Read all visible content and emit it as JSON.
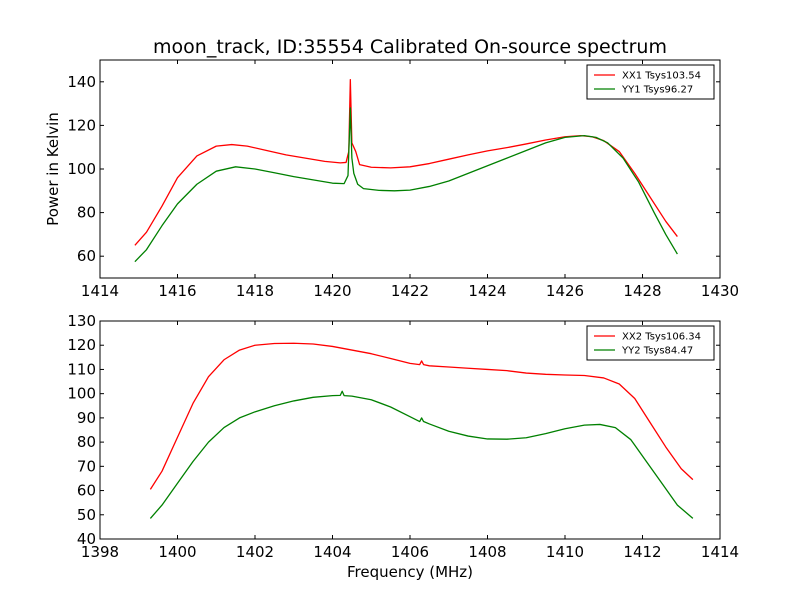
{
  "figure": {
    "title": "moon_track, ID:35554 Calibrated On-source spectrum"
  },
  "chart_data": [
    {
      "type": "line",
      "title": "moon_track, ID:35554 Calibrated On-source spectrum",
      "xlabel": "",
      "ylabel": "Power in Kelvin",
      "xlim": [
        1414,
        1430
      ],
      "ylim": [
        50,
        150
      ],
      "xticks": [
        "1414",
        "1416",
        "1418",
        "1420",
        "1422",
        "1424",
        "1426",
        "1428",
        "1430"
      ],
      "yticks": [
        "60",
        "80",
        "100",
        "120",
        "140"
      ],
      "xtick_values": [
        1414,
        1416,
        1418,
        1420,
        1422,
        1424,
        1426,
        1428,
        1430
      ],
      "ytick_values": [
        60,
        80,
        100,
        120,
        140
      ],
      "grid": false,
      "legend_position": "top-right",
      "series": [
        {
          "name": "XX1 Tsys103.54",
          "color": "#ff0000",
          "x": [
            1414.9,
            1415.2,
            1415.6,
            1416.0,
            1416.5,
            1417.0,
            1417.4,
            1417.8,
            1418.3,
            1418.8,
            1419.3,
            1419.8,
            1420.2,
            1420.35,
            1420.42,
            1420.46,
            1420.5,
            1420.55,
            1420.6,
            1420.7,
            1421.0,
            1421.5,
            1422.0,
            1422.5,
            1423.0,
            1423.5,
            1424.0,
            1424.5,
            1425.0,
            1425.5,
            1426.0,
            1426.4,
            1426.7,
            1427.0,
            1427.4,
            1427.8,
            1428.2,
            1428.6,
            1428.9
          ],
          "y": [
            65,
            71,
            83,
            96,
            106,
            110.5,
            111.2,
            110.5,
            108.5,
            106.5,
            105,
            103.5,
            102.8,
            103,
            108,
            141,
            112,
            110,
            108,
            102,
            100.8,
            100.5,
            101,
            102.5,
            104.5,
            106.5,
            108.3,
            109.8,
            111.5,
            113.3,
            114.8,
            115.3,
            114.8,
            113,
            108,
            98,
            87,
            76,
            69
          ]
        },
        {
          "name": "YY1 Tsys96.27",
          "color": "#008000",
          "x": [
            1414.9,
            1415.2,
            1415.6,
            1416.0,
            1416.5,
            1417.0,
            1417.5,
            1418.0,
            1418.5,
            1419.0,
            1419.5,
            1420.0,
            1420.3,
            1420.4,
            1420.46,
            1420.5,
            1420.55,
            1420.65,
            1420.8,
            1421.2,
            1421.6,
            1422.0,
            1422.5,
            1423.0,
            1423.5,
            1424.0,
            1424.5,
            1425.0,
            1425.5,
            1426.0,
            1426.5,
            1426.8,
            1427.1,
            1427.5,
            1427.9,
            1428.3,
            1428.6,
            1428.9
          ],
          "y": [
            57.5,
            63,
            74,
            84,
            93,
            99,
            101,
            100,
            98.3,
            96.5,
            95,
            93.5,
            93.3,
            97,
            128,
            105,
            98,
            93,
            91,
            90.2,
            90,
            90.3,
            92,
            94.5,
            98,
            101.5,
            105,
            108.5,
            112,
            114.5,
            115.3,
            114.5,
            112,
            105,
            94,
            80,
            70,
            61
          ]
        }
      ]
    },
    {
      "type": "line",
      "title": "",
      "xlabel": "Frequency (MHz)",
      "ylabel": "",
      "xlim": [
        1398,
        1414
      ],
      "ylim": [
        40,
        130
      ],
      "xticks": [
        "1398",
        "1400",
        "1402",
        "1404",
        "1406",
        "1408",
        "1410",
        "1412",
        "1414"
      ],
      "yticks": [
        "40",
        "50",
        "60",
        "70",
        "80",
        "90",
        "100",
        "110",
        "120",
        "130"
      ],
      "xtick_values": [
        1398,
        1400,
        1402,
        1404,
        1406,
        1408,
        1410,
        1412,
        1414
      ],
      "ytick_values": [
        40,
        50,
        60,
        70,
        80,
        90,
        100,
        110,
        120,
        130
      ],
      "grid": false,
      "legend_position": "top-right",
      "series": [
        {
          "name": "XX2 Tsys106.34",
          "color": "#ff0000",
          "x": [
            1399.3,
            1399.6,
            1400.0,
            1400.4,
            1400.8,
            1401.2,
            1401.6,
            1402.0,
            1402.5,
            1403.0,
            1403.5,
            1404.0,
            1404.5,
            1405.0,
            1405.5,
            1406.0,
            1406.25,
            1406.3,
            1406.35,
            1406.5,
            1407.0,
            1407.5,
            1408.0,
            1408.5,
            1409.0,
            1409.5,
            1410.0,
            1410.5,
            1411.0,
            1411.4,
            1411.8,
            1412.2,
            1412.6,
            1413.0,
            1413.3
          ],
          "y": [
            60.5,
            68,
            82,
            96,
            107,
            114,
            118,
            120,
            120.7,
            120.8,
            120.5,
            119.5,
            118,
            116.5,
            114.5,
            112.5,
            112,
            113.5,
            112,
            111.5,
            111,
            110.5,
            110,
            109.5,
            108.5,
            108,
            107.7,
            107.5,
            106.5,
            104,
            98,
            88,
            78,
            69,
            64.5
          ]
        },
        {
          "name": "YY2 Tsys84.47",
          "color": "#008000",
          "x": [
            1399.3,
            1399.6,
            1400.0,
            1400.4,
            1400.8,
            1401.2,
            1401.6,
            1402.0,
            1402.5,
            1403.0,
            1403.5,
            1404.0,
            1404.2,
            1404.25,
            1404.3,
            1404.5,
            1405.0,
            1405.5,
            1406.0,
            1406.25,
            1406.3,
            1406.35,
            1406.5,
            1407.0,
            1407.5,
            1408.0,
            1408.5,
            1409.0,
            1409.5,
            1410.0,
            1410.5,
            1410.9,
            1411.3,
            1411.7,
            1412.1,
            1412.5,
            1412.9,
            1413.3
          ],
          "y": [
            48.5,
            54,
            63,
            72,
            80,
            86,
            90,
            92.5,
            95,
            97,
            98.5,
            99.2,
            99.3,
            101,
            99.2,
            99,
            97.5,
            94.5,
            90.5,
            88.5,
            90,
            88.5,
            87.5,
            84.5,
            82.5,
            81.3,
            81.2,
            81.8,
            83.5,
            85.5,
            87,
            87.3,
            86,
            81,
            72,
            63,
            54,
            48.5
          ]
        }
      ]
    }
  ]
}
